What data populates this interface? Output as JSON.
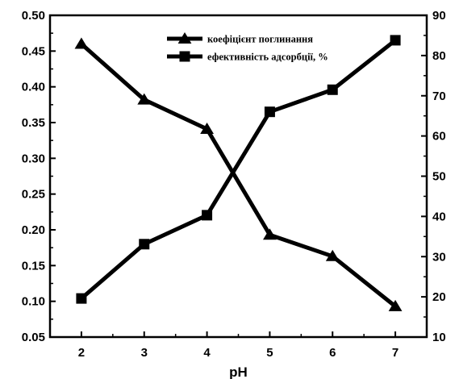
{
  "chart_data": {
    "type": "line",
    "title": "",
    "xlabel": "pH",
    "ylabel_left": "",
    "ylabel_right": "",
    "x": [
      2,
      3,
      4,
      5,
      6,
      7
    ],
    "xlim": [
      1.5,
      7.5
    ],
    "x_ticks": [
      "2",
      "3",
      "4",
      "5",
      "6",
      "7"
    ],
    "ylim_left": [
      0.05,
      0.5
    ],
    "y_ticks_left": [
      "0.05",
      "0.10",
      "0.15",
      "0.20",
      "0.25",
      "0.30",
      "0.35",
      "0.40",
      "0.45",
      "0.50"
    ],
    "ylim_right": [
      10,
      90
    ],
    "y_ticks_right": [
      "10",
      "20",
      "30",
      "40",
      "50",
      "60",
      "70",
      "80",
      "90"
    ],
    "grid": false,
    "legend_position": "top-right",
    "series": [
      {
        "name": "коефіцієнт поглинання",
        "axis": "left",
        "marker": "triangle",
        "color": "#000000",
        "values": [
          0.46,
          0.382,
          0.341,
          0.193,
          0.163,
          0.093
        ]
      },
      {
        "name": "ефективність адсорбції, %",
        "axis": "right",
        "marker": "square",
        "color": "#000000",
        "values": [
          19.6,
          33.1,
          40.3,
          66.0,
          71.5,
          83.8
        ]
      }
    ]
  }
}
